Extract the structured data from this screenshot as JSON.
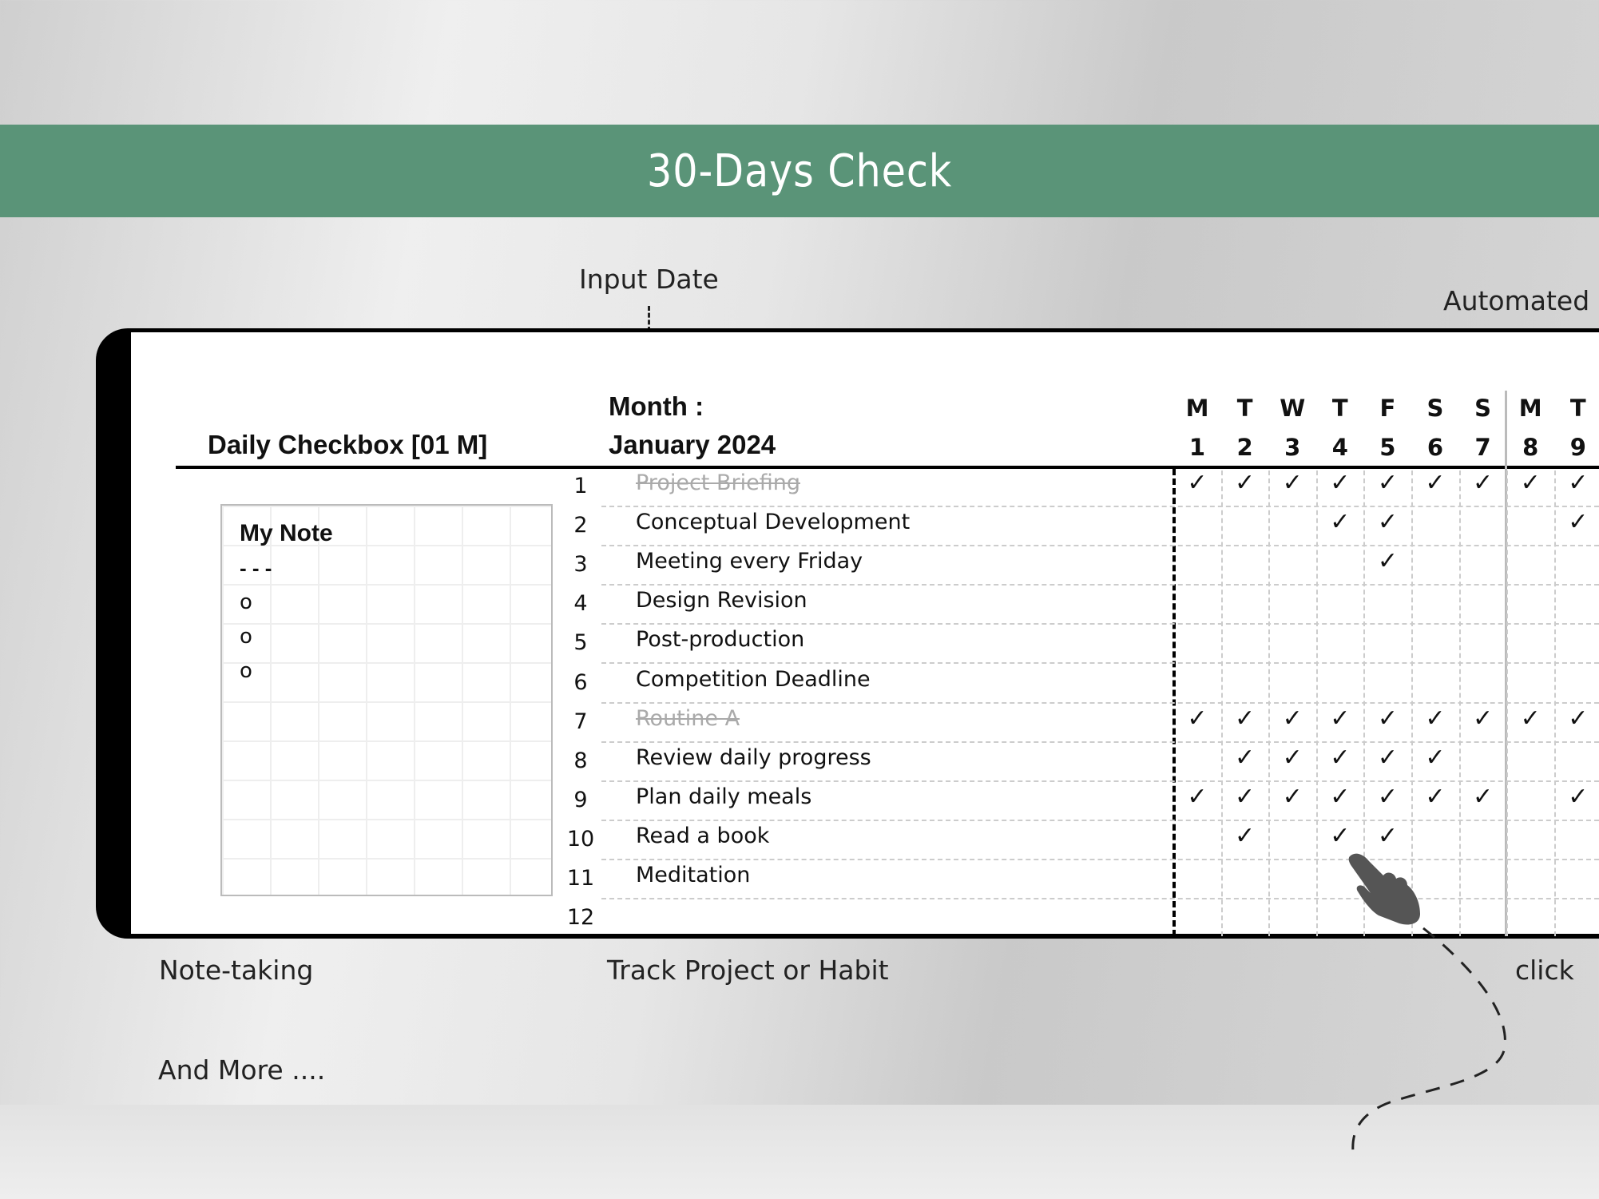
{
  "banner": {
    "title": "30-Days Check",
    "color": "#5a9478"
  },
  "annotations": {
    "input_date": "Input Date",
    "automated": "Automated",
    "note_taking": "Note-taking",
    "track": "Track Project or Habit",
    "click": "click",
    "and_more": "And More ...."
  },
  "sheet": {
    "title": "Daily Checkbox [01 M]",
    "month_label": "Month :",
    "month_value": "January 2024",
    "days": [
      {
        "weekday": "M",
        "date": "1"
      },
      {
        "weekday": "T",
        "date": "2"
      },
      {
        "weekday": "W",
        "date": "3"
      },
      {
        "weekday": "T",
        "date": "4"
      },
      {
        "weekday": "F",
        "date": "5"
      },
      {
        "weekday": "S",
        "date": "6"
      },
      {
        "weekday": "S",
        "date": "7"
      },
      {
        "weekday": "M",
        "date": "8"
      },
      {
        "weekday": "T",
        "date": "9"
      }
    ],
    "rows": [
      {
        "num": "1",
        "task": "Project Briefing",
        "done": true,
        "checks": [
          1,
          2,
          3,
          4,
          5,
          6,
          7,
          8,
          9
        ]
      },
      {
        "num": "2",
        "task": "Conceptual Development",
        "done": false,
        "checks": [
          4,
          5,
          9
        ]
      },
      {
        "num": "3",
        "task": "Meeting every Friday",
        "done": false,
        "checks": [
          5
        ]
      },
      {
        "num": "4",
        "task": "Design Revision",
        "done": false,
        "checks": []
      },
      {
        "num": "5",
        "task": "Post-production",
        "done": false,
        "checks": []
      },
      {
        "num": "6",
        "task": "Competition Deadline",
        "done": false,
        "checks": []
      },
      {
        "num": "7",
        "task": "Routine A",
        "done": true,
        "checks": [
          1,
          2,
          3,
          4,
          5,
          6,
          7,
          8,
          9
        ]
      },
      {
        "num": "8",
        "task": "Review daily progress",
        "done": false,
        "checks": [
          2,
          3,
          4,
          5,
          6
        ]
      },
      {
        "num": "9",
        "task": "Plan daily meals",
        "done": false,
        "checks": [
          1,
          2,
          3,
          4,
          5,
          6,
          7,
          9
        ]
      },
      {
        "num": "10",
        "task": "Read a book",
        "done": false,
        "checks": [
          2,
          4,
          5
        ]
      },
      {
        "num": "11",
        "task": "Meditation",
        "done": false,
        "checks": []
      },
      {
        "num": "12",
        "task": "",
        "done": false,
        "checks": []
      }
    ],
    "check_glyph": "✓",
    "note": {
      "title": "My Note",
      "divider": "- - -",
      "bullets": [
        "o",
        "o",
        "o"
      ]
    }
  },
  "icons": {
    "cursor": "hand-pointer-icon"
  }
}
